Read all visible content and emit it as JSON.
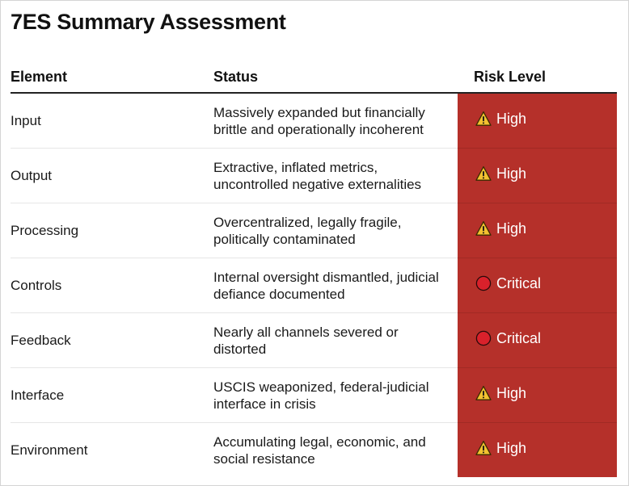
{
  "title": "7ES Summary Assessment",
  "columns": {
    "element": "Element",
    "status": "Status",
    "risk": "Risk Level"
  },
  "colors": {
    "risk_cell_background": "#b5302a",
    "warning_icon_fill": "#f2c230",
    "critical_icon_fill": "#d9212b"
  },
  "rows": [
    {
      "element": "Input",
      "status": "Massively expanded but financially brittle and operationally incoherent",
      "risk": "High",
      "icon": "warning-triangle-icon"
    },
    {
      "element": "Output",
      "status": "Extractive, inflated metrics, uncontrolled negative externalities",
      "risk": "High",
      "icon": "warning-triangle-icon"
    },
    {
      "element": "Processing",
      "status": "Overcentralized, legally fragile, politically contaminated",
      "risk": "High",
      "icon": "warning-triangle-icon"
    },
    {
      "element": "Controls",
      "status": "Internal oversight dismantled, judicial defiance documented",
      "risk": "Critical",
      "icon": "red-circle-icon"
    },
    {
      "element": "Feedback",
      "status": "Nearly all channels severed or distorted",
      "risk": "Critical",
      "icon": "red-circle-icon"
    },
    {
      "element": "Interface",
      "status": "USCIS weaponized, federal-judicial interface in crisis",
      "risk": "High",
      "icon": "warning-triangle-icon"
    },
    {
      "element": "Environment",
      "status": "Accumulating legal, economic, and social resistance",
      "risk": "High",
      "icon": "warning-triangle-icon"
    }
  ]
}
